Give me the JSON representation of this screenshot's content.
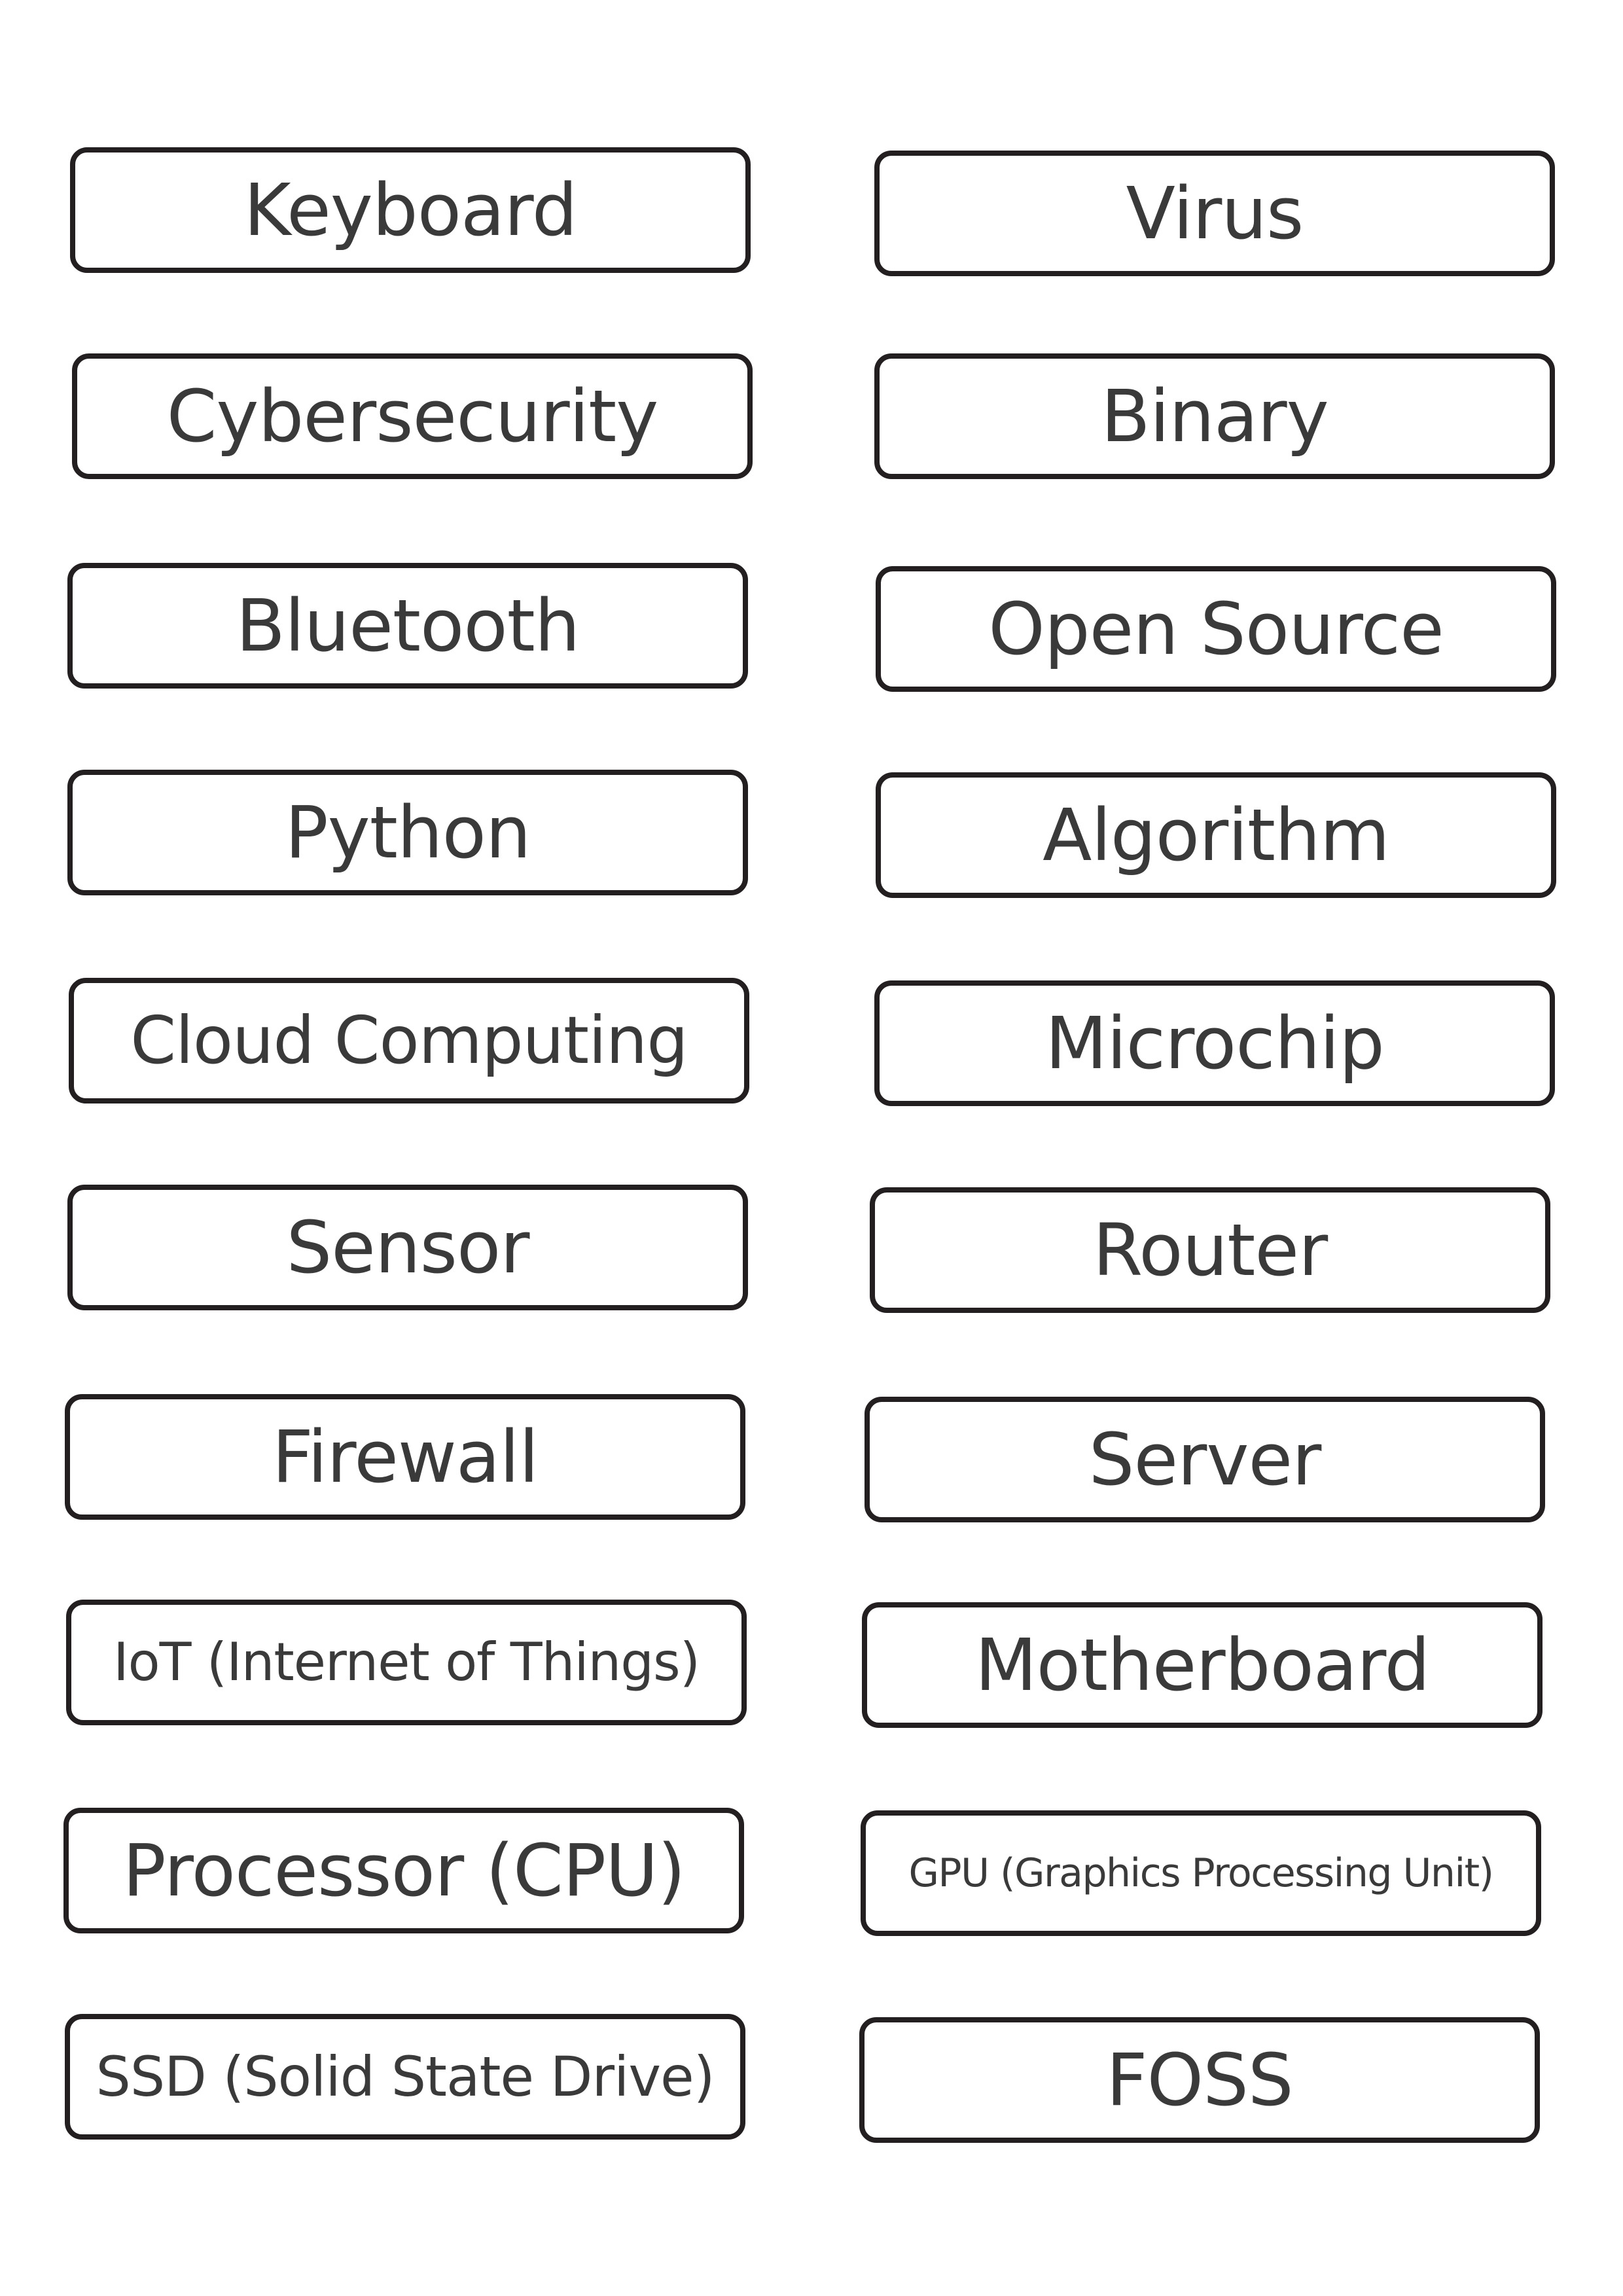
{
  "cards": {
    "left": [
      {
        "label": "Keyboard"
      },
      {
        "label": "Cybersecurity"
      },
      {
        "label": "Bluetooth"
      },
      {
        "label": "Python"
      },
      {
        "label": "Cloud Computing"
      },
      {
        "label": "Sensor"
      },
      {
        "label": "Firewall"
      },
      {
        "label": "IoT (Internet of Things)"
      },
      {
        "label": "Processor (CPU)"
      },
      {
        "label": "SSD (Solid State Drive)"
      }
    ],
    "right": [
      {
        "label": "Virus"
      },
      {
        "label": "Binary"
      },
      {
        "label": "Open Source"
      },
      {
        "label": "Algorithm"
      },
      {
        "label": "Microchip"
      },
      {
        "label": "Router"
      },
      {
        "label": "Server"
      },
      {
        "label": "Motherboard"
      },
      {
        "label": "GPU (Graphics Processing Unit)"
      },
      {
        "label": "FOSS"
      }
    ]
  },
  "colors": {
    "border": "#231f20",
    "text": "#3a3a3b",
    "background": "#ffffff"
  }
}
